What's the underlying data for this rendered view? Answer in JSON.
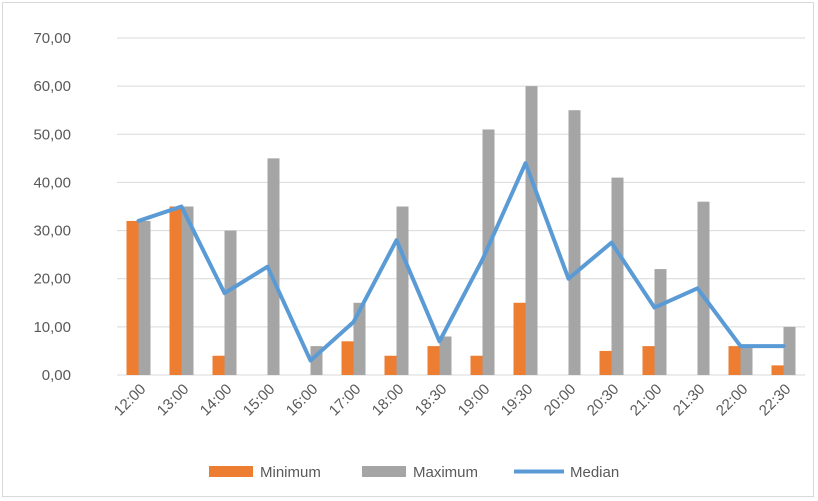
{
  "chart_data": {
    "type": "bar",
    "categories": [
      "12:00",
      "13:00",
      "14:00",
      "15:00",
      "16:00",
      "17:00",
      "18:00",
      "18:30",
      "19:00",
      "19:30",
      "20:00",
      "20:30",
      "21:00",
      "21:30",
      "22:00",
      "22:30"
    ],
    "series": [
      {
        "name": "Minimum",
        "kind": "bar",
        "color": "#ed7d31",
        "values": [
          32,
          35,
          4,
          0,
          0,
          7,
          4,
          6,
          4,
          15,
          0,
          5,
          6,
          0,
          6,
          2
        ]
      },
      {
        "name": "Maximum",
        "kind": "bar",
        "color": "#a5a5a5",
        "values": [
          32,
          35,
          30,
          45,
          6,
          15,
          35,
          8,
          51,
          60,
          55,
          41,
          22,
          36,
          6,
          10
        ]
      },
      {
        "name": "Median",
        "kind": "line",
        "color": "#5b9bd5",
        "values": [
          32,
          35,
          17,
          22.5,
          3,
          11,
          28,
          7,
          24,
          44,
          20,
          27.5,
          14,
          18,
          6,
          6
        ]
      }
    ],
    "y_ticks": [
      "0,00",
      "10,00",
      "20,00",
      "30,00",
      "40,00",
      "50,00",
      "60,00",
      "70,00"
    ],
    "ylim": [
      0,
      70
    ],
    "grid": true,
    "legend_position": "bottom"
  }
}
